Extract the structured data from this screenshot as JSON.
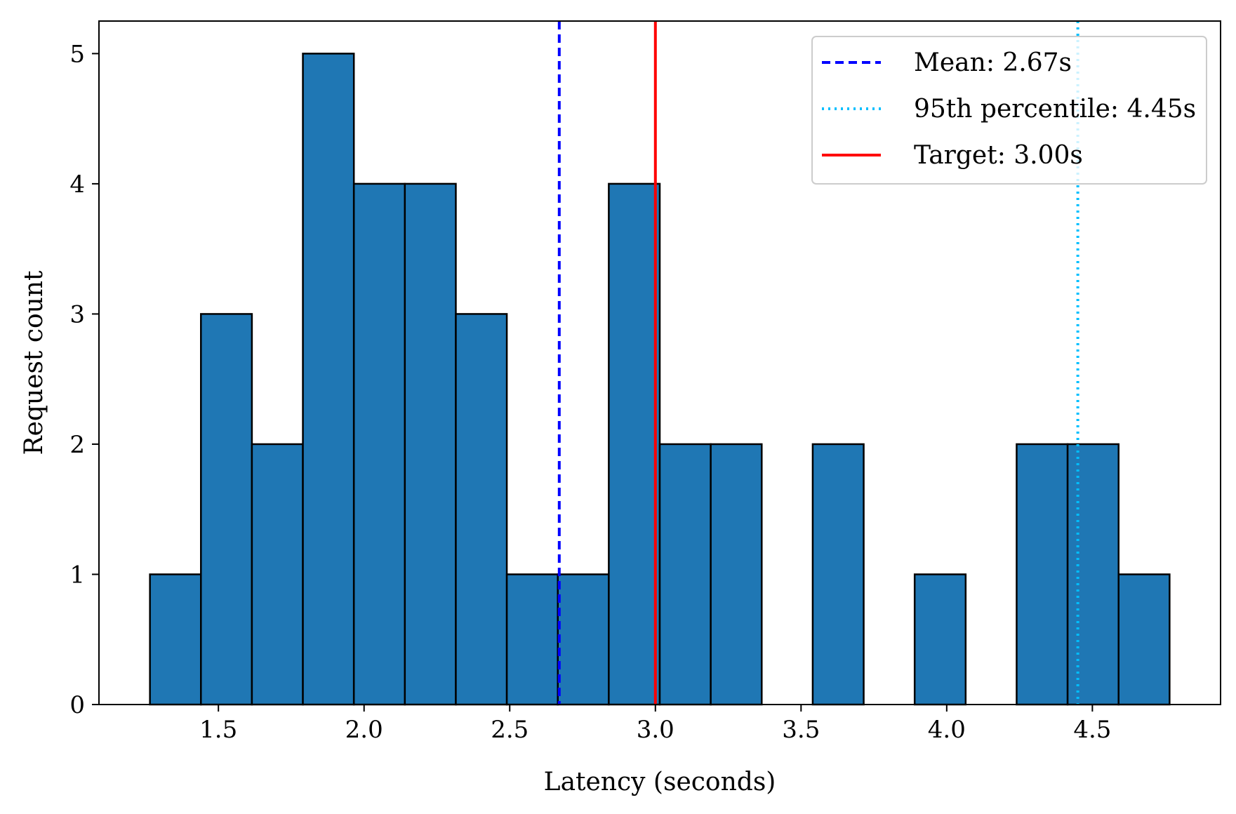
{
  "chart_data": {
    "type": "bar",
    "subtype": "histogram",
    "title": "",
    "xlabel": "Latency (seconds)",
    "ylabel": "Request count",
    "xlim": [
      1.09,
      4.94
    ],
    "ylim": [
      0,
      5.25
    ],
    "xticks": [
      1.5,
      2.0,
      2.5,
      3.0,
      3.5,
      4.0,
      4.5
    ],
    "xtick_labels": [
      "1.5",
      "2.0",
      "2.5",
      "3.0",
      "3.5",
      "4.0",
      "4.5"
    ],
    "yticks": [
      0,
      1,
      2,
      3,
      4,
      5
    ],
    "ytick_labels": [
      "0",
      "1",
      "2",
      "3",
      "4",
      "5"
    ],
    "bin_edges": [
      1.265,
      1.44,
      1.615,
      1.79,
      1.965,
      2.14,
      2.315,
      2.49,
      2.665,
      2.84,
      3.015,
      3.19,
      3.365,
      3.54,
      3.715,
      3.89,
      4.065,
      4.24,
      4.415,
      4.59,
      4.765
    ],
    "counts": [
      1,
      3,
      2,
      5,
      4,
      4,
      3,
      1,
      1,
      4,
      2,
      2,
      0,
      2,
      0,
      1,
      0,
      2,
      2,
      1
    ],
    "bar_color": "#1f77b4",
    "edge_color": "#000000",
    "grid": false,
    "legend_position": "upper right",
    "reference_lines": [
      {
        "label": "Mean: 2.67s",
        "x": 2.67,
        "color": "#0000ff",
        "style": "dashed"
      },
      {
        "label": "95th percentile: 4.45s",
        "x": 4.45,
        "color": "#00bfff",
        "style": "dotted"
      },
      {
        "label": "Target: 3.00s",
        "x": 3.0,
        "color": "#ff0000",
        "style": "solid"
      }
    ]
  }
}
